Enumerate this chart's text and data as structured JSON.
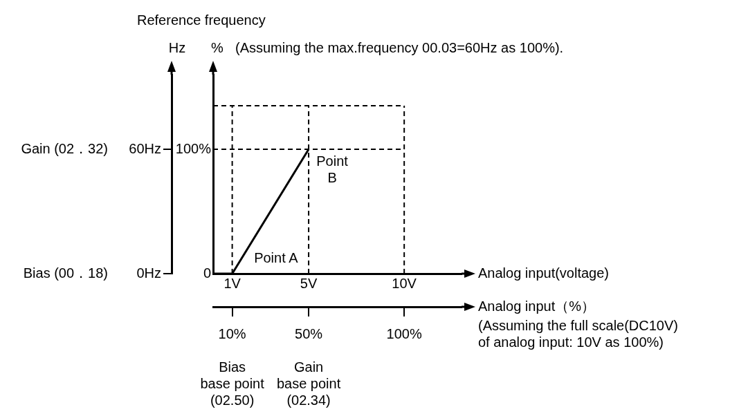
{
  "chart_data": {
    "type": "line",
    "title": "Reference frequency",
    "xlabel": "Analog input(voltage)",
    "x2label": "Analog input（%）",
    "ylabel": "%",
    "x": [
      0,
      1,
      5
    ],
    "series": [
      {
        "color": "#000000",
        "values": [
          0,
          0,
          100
        ]
      }
    ],
    "xlim": [
      0,
      13
    ],
    "xticks": [
      {
        "value": 1,
        "label": "1V"
      },
      {
        "value": 5,
        "label": "5V"
      },
      {
        "value": 10,
        "label": "10V"
      }
    ],
    "x2lim": [
      0,
      130
    ],
    "x2ticks": [
      {
        "value": 10,
        "label": "10%"
      },
      {
        "value": 50,
        "label": "50%"
      },
      {
        "value": 100,
        "label": "100%"
      }
    ],
    "ylim": [
      0,
      160
    ],
    "yticks": [
      0,
      {
        "value": 100,
        "label": "100%"
      }
    ],
    "y2lim": [
      0,
      96
    ],
    "y2ticks": [
      {
        "value": 0,
        "label": "0Hz"
      },
      {
        "value": 60,
        "label": "60Hz"
      }
    ],
    "ref_lines": [
      {
        "axis": "x",
        "value": 1,
        "line_style": "dashed"
      },
      {
        "axis": "x",
        "value": 5,
        "line_style": "dashed"
      },
      {
        "axis": "x",
        "value": 10,
        "line_style": "dashed"
      },
      {
        "axis": "y",
        "value": 100,
        "line_style": "dashed"
      },
      {
        "axis": "y",
        "value": 135,
        "line_style": "dashed"
      }
    ],
    "annotations": [
      "(Assuming the max.frequency 00.03=60Hz as 100%).",
      "(Assuming the full scale(DC10V)\nof analog input: 10V as 100%)",
      "Point A",
      "Point\nB",
      "Gain (02．32)",
      "Bias (00．18)",
      "Bias\nbase point\n(02.50)",
      "Gain\nbase point\n(02.34)",
      "Hz"
    ],
    "marker": "none",
    "legend": false
  }
}
